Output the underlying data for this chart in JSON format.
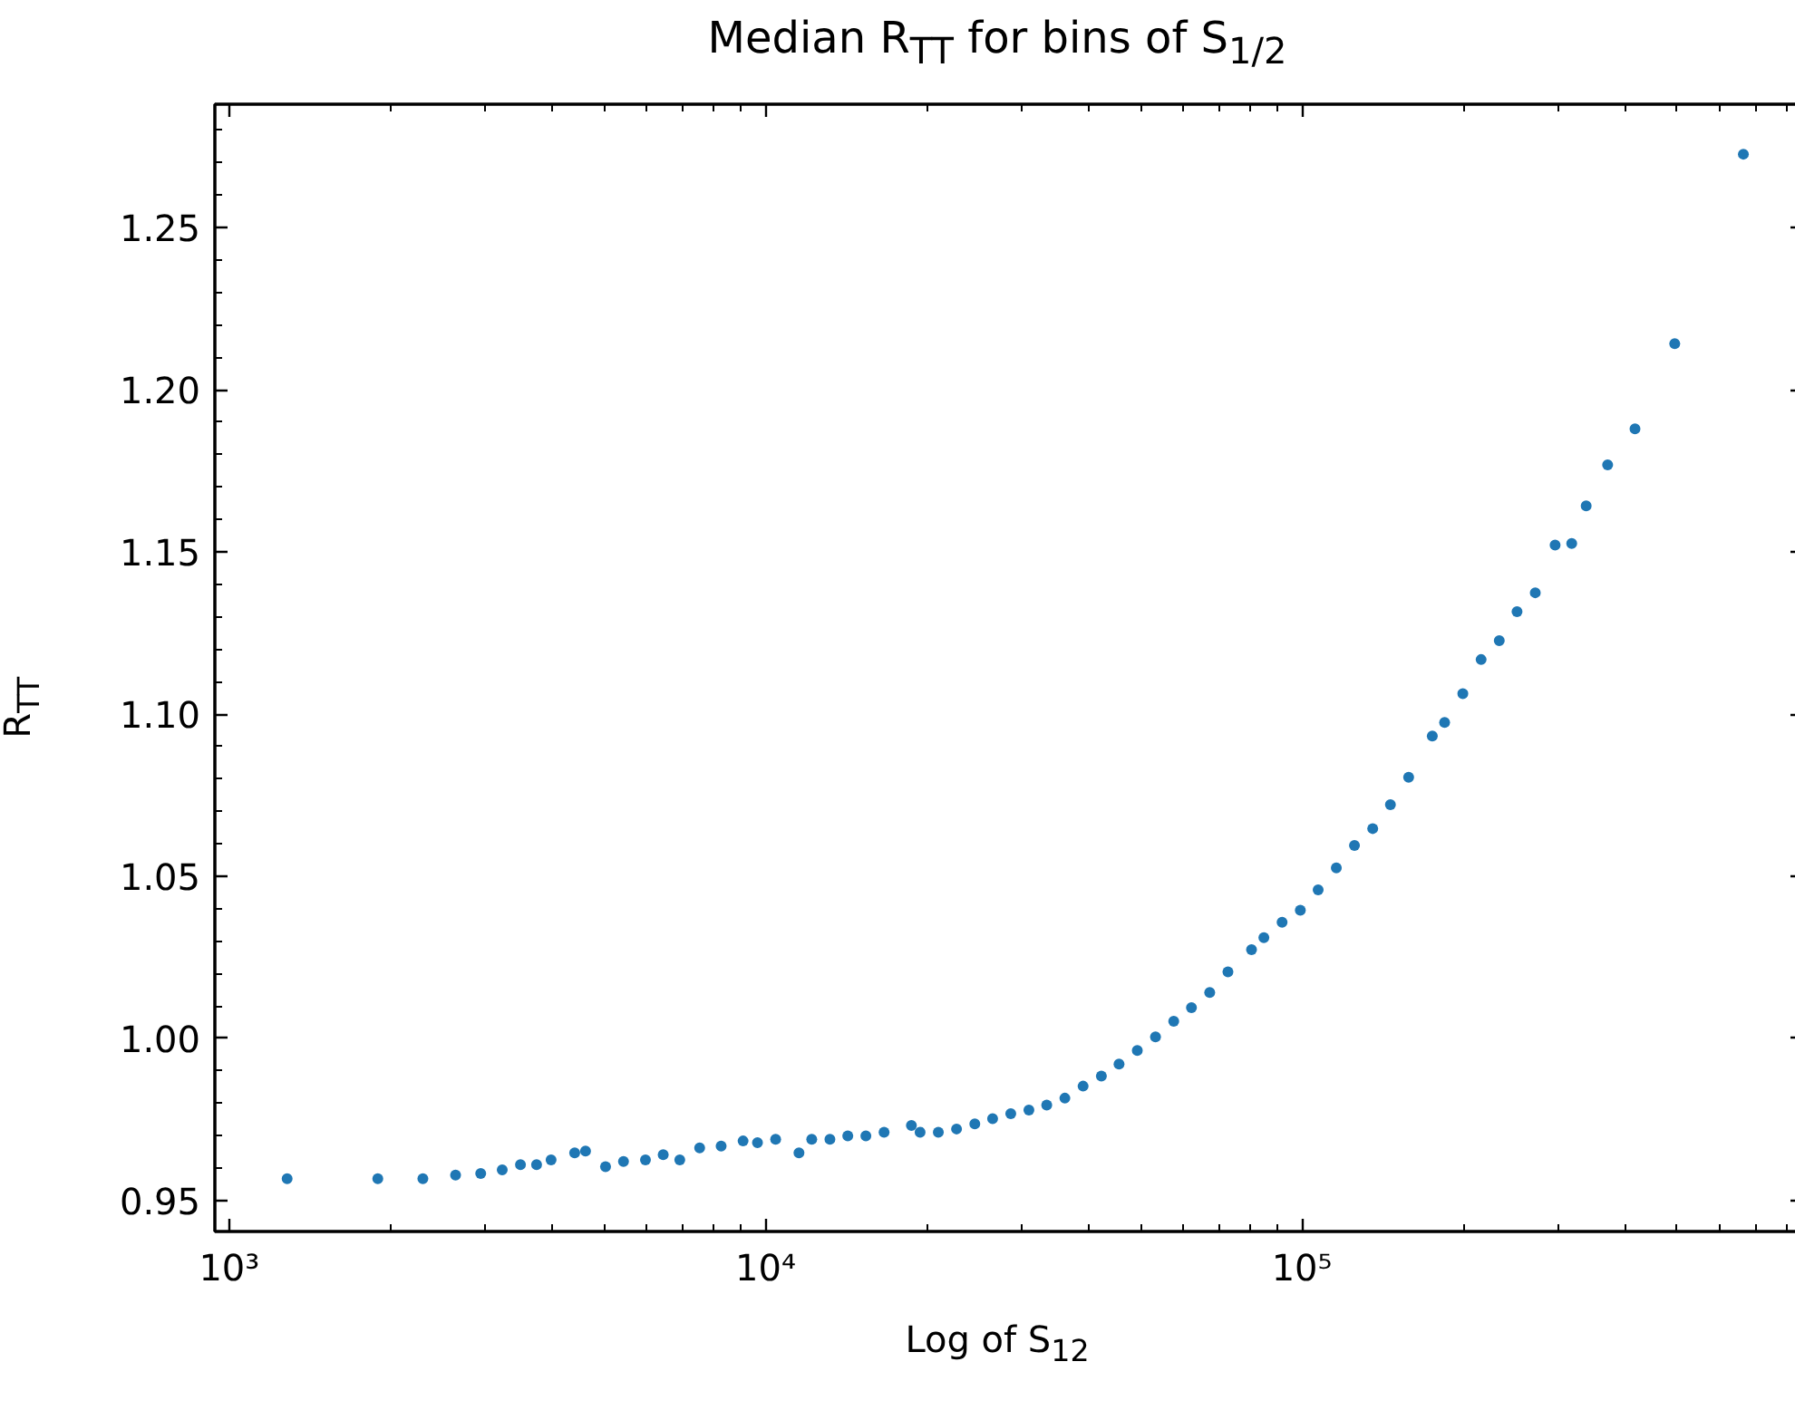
{
  "chart_data": {
    "type": "scatter",
    "title": "Median R$_{TT}$ for bins of S$_{1/2}$",
    "xlabel": "Log of S$_{12}$",
    "ylabel": "R$_{TT}$",
    "log": "x",
    "grid": false,
    "marker": "circle",
    "xlim": [
      940,
      860000
    ],
    "xticks": [
      {
        "value": 1000,
        "label": "10³"
      },
      {
        "value": 10000,
        "label": "10⁴"
      },
      {
        "value": 100000,
        "label": "10⁵"
      }
    ],
    "ylim": [
      0.9405,
      1.288
    ],
    "yticks": [
      0.95,
      {
        "value": 1.0,
        "label": "1.00"
      },
      1.05,
      {
        "value": 1.1,
        "label": "1.10"
      },
      1.15,
      {
        "value": 1.2,
        "label": "1.20"
      },
      1.25
    ],
    "x": [
      1282,
      1892,
      2296,
      2642,
      2943,
      3228,
      3491,
      3741,
      3981,
      4406,
      4616,
      5030,
      5433,
      5970,
      6443,
      6918,
      7534,
      8262,
      9078,
      9657,
      10440,
      11540,
      12190,
      13180,
      14230,
      15380,
      16630,
      18700,
      19410,
      20990,
      22700,
      24550,
      26500,
      28650,
      30970,
      33430,
      36140,
      39080,
      42270,
      45600,
      49320,
      53330,
      57670,
      62230,
      67300,
      72780,
      80540,
      84920,
      91830,
      99310,
      107200,
      115900,
      125300,
      135500,
      146200,
      158100,
      175000,
      184500,
      199500,
      215800,
      233300,
      251800,
      272300,
      296500,
      318400,
      338800,
      371500,
      417800,
      495500,
      665300
    ],
    "series": [
      {
        "color": "#1f77b4",
        "values": [
          0.9568,
          0.9568,
          0.9568,
          0.9579,
          0.9584,
          0.9595,
          0.9611,
          0.9611,
          0.9626,
          0.9647,
          0.9653,
          0.9605,
          0.9621,
          0.9626,
          0.9642,
          0.9626,
          0.9663,
          0.9668,
          0.9684,
          0.9679,
          0.9689,
          0.9647,
          0.9689,
          0.9689,
          0.97,
          0.97,
          0.9711,
          0.9732,
          0.9711,
          0.9711,
          0.9721,
          0.9737,
          0.9753,
          0.9768,
          0.9779,
          0.9795,
          0.9816,
          0.9853,
          0.9884,
          0.9921,
          0.9963,
          1.0005,
          1.0053,
          1.0095,
          1.0142,
          1.0205,
          1.0274,
          1.0311,
          1.0358,
          1.0395,
          1.0458,
          1.0526,
          1.0595,
          1.0647,
          1.0721,
          1.0805,
          1.0932,
          1.0974,
          1.1063,
          1.1168,
          1.1226,
          1.1316,
          1.1374,
          1.1521,
          1.1526,
          1.1642,
          1.1768,
          1.1879,
          1.2142,
          1.2726
        ]
      }
    ]
  }
}
